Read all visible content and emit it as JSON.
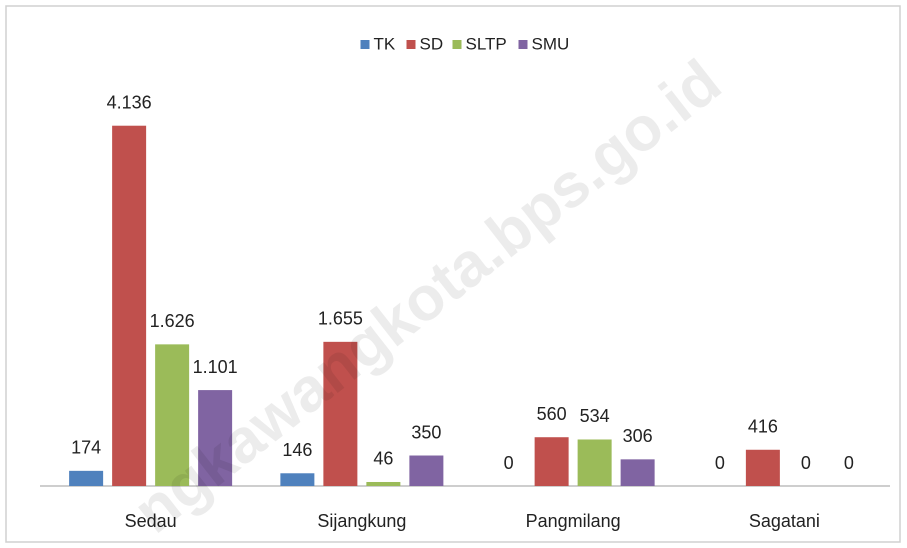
{
  "chart_data": {
    "type": "bar",
    "categories": [
      "Sedau",
      "Sijangkung",
      "Pangmilang",
      "Sagatani"
    ],
    "series": [
      {
        "name": "TK",
        "color": "#4f81bd",
        "values": [
          174,
          146,
          0,
          0
        ],
        "value_labels": [
          "174",
          "146",
          "0",
          "0"
        ]
      },
      {
        "name": "SD",
        "color": "#c0504d",
        "values": [
          4136,
          1655,
          560,
          416
        ],
        "value_labels": [
          "4.136",
          "1.655",
          "560",
          "416"
        ]
      },
      {
        "name": "SLTP",
        "color": "#9bbb59",
        "values": [
          1626,
          46,
          534,
          0
        ],
        "value_labels": [
          "1.626",
          "46",
          "534",
          "0"
        ]
      },
      {
        "name": "SMU",
        "color": "#8064a2",
        "values": [
          1101,
          350,
          306,
          0
        ],
        "value_labels": [
          "1.101",
          "350",
          "306",
          "0"
        ]
      }
    ],
    "ylim": [
      0,
      4500
    ],
    "legend": "top",
    "watermark": "ngkawangkota.bps.go.id"
  }
}
